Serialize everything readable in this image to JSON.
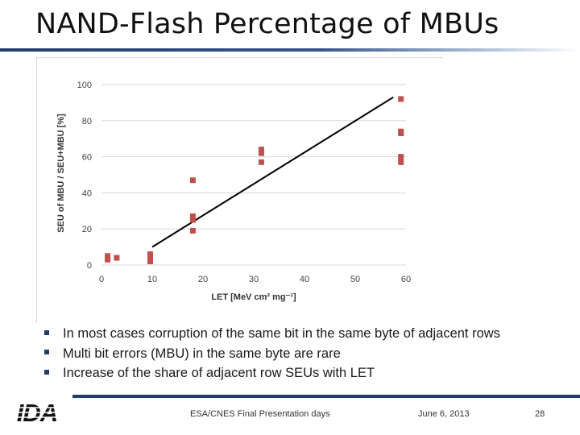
{
  "slide": {
    "title": "NAND-Flash Percentage of MBUs",
    "bullets": [
      "In most cases corruption of the same bit in the same byte of adjacent rows",
      "Multi bit errors (MBU) in the same byte are rare",
      "Increase of the share of adjacent row SEUs with LET"
    ],
    "footer": {
      "event": "ESA/CNES Final Presentation days",
      "date": "June 6, 2013",
      "page": "28"
    },
    "logo_text": "IDA",
    "colors": {
      "accent": "#1f3c6e",
      "marker": "#c0504d",
      "grid": "#d9d9d9"
    }
  },
  "chart_data": {
    "type": "scatter",
    "title": "",
    "xlabel": "LET [MeV cm² mg⁻¹]",
    "ylabel": "SEU of MBU / SEU+MBU [%]",
    "xlim": [
      0,
      60
    ],
    "ylim": [
      0,
      100
    ],
    "xticks": [
      0,
      10,
      20,
      30,
      40,
      50,
      60
    ],
    "yticks": [
      0,
      20,
      40,
      60,
      80,
      100
    ],
    "grid": "horizontal",
    "series": [
      {
        "name": "",
        "points": [
          {
            "x": 1.2,
            "y": 5
          },
          {
            "x": 1.2,
            "y": 3
          },
          {
            "x": 3,
            "y": 4
          },
          {
            "x": 9.6,
            "y": 6
          },
          {
            "x": 9.6,
            "y": 4
          },
          {
            "x": 9.6,
            "y": 2
          },
          {
            "x": 18,
            "y": 47
          },
          {
            "x": 18,
            "y": 27
          },
          {
            "x": 18,
            "y": 25
          },
          {
            "x": 18,
            "y": 19
          },
          {
            "x": 31.5,
            "y": 64
          },
          {
            "x": 31.5,
            "y": 62
          },
          {
            "x": 31.5,
            "y": 57
          },
          {
            "x": 59,
            "y": 92
          },
          {
            "x": 59,
            "y": 74
          },
          {
            "x": 59,
            "y": 73
          },
          {
            "x": 59,
            "y": 60
          },
          {
            "x": 59,
            "y": 57
          }
        ]
      }
    ],
    "trendline": [
      [
        10,
        10
      ],
      [
        57.5,
        93
      ]
    ]
  }
}
